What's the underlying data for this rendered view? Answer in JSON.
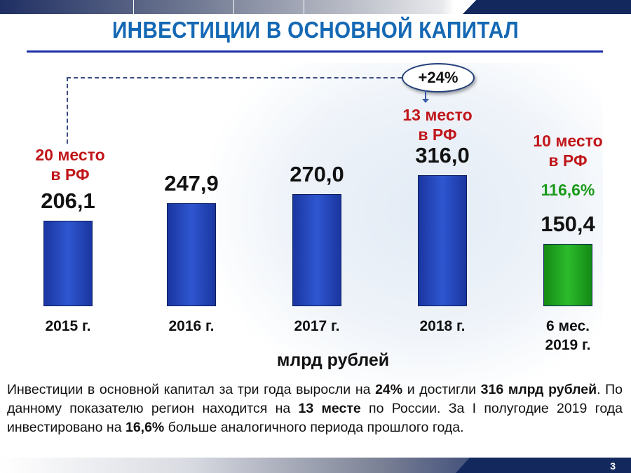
{
  "title": "ИНВЕСТИЦИИ В ОСНОВНОЙ КАПИТАЛ",
  "growth_badge": "+24%",
  "chart_data": {
    "type": "bar",
    "title": "ИНВЕСТИЦИИ В ОСНОВНОЙ КАПИТАЛ",
    "xlabel": "",
    "ylabel": "млрд рублей",
    "unit_label": "млрд рублей",
    "categories": [
      "2015 г.",
      "2016 г.",
      "2017 г.",
      "2018 г.",
      "6 мес. 2019 г."
    ],
    "category_lines": [
      [
        "2015 г."
      ],
      [
        "2016 г."
      ],
      [
        "2017 г."
      ],
      [
        "2018 г."
      ],
      [
        "6 мес.",
        "2019 г."
      ]
    ],
    "values": [
      206.1,
      247.9,
      270.0,
      316.0,
      150.4
    ],
    "value_labels": [
      "206,1",
      "247,9",
      "270,0",
      "316,0",
      "150,4"
    ],
    "colors": [
      "#2442b8",
      "#2442b8",
      "#2442b8",
      "#2442b8",
      "#1f9e1f"
    ],
    "ylim": [
      0,
      400
    ],
    "grid": false,
    "annotations": {
      "rank_2015": [
        "20 место",
        "в РФ"
      ],
      "rank_2018": [
        "13 место",
        "в РФ"
      ],
      "rank_2019": [
        "10 место",
        "в РФ"
      ],
      "pct_2019": "116,6%"
    }
  },
  "paragraph": [
    {
      "t": "Инвестиции в основной капитал за три года выросли на ",
      "b": false
    },
    {
      "t": "24%",
      "b": true
    },
    {
      "t": " и достигли ",
      "b": false
    },
    {
      "t": "316 млрд рублей",
      "b": true
    },
    {
      "t": ". По данному показателю регион находится на ",
      "b": false
    },
    {
      "t": "13 месте",
      "b": true
    },
    {
      "t": " по России. За I полугодие 2019 года инвестировано на ",
      "b": false
    },
    {
      "t": "16,6%",
      "b": true
    },
    {
      "t": " больше аналогичного периода прошлого года.",
      "b": false
    }
  ],
  "page_number": "3"
}
